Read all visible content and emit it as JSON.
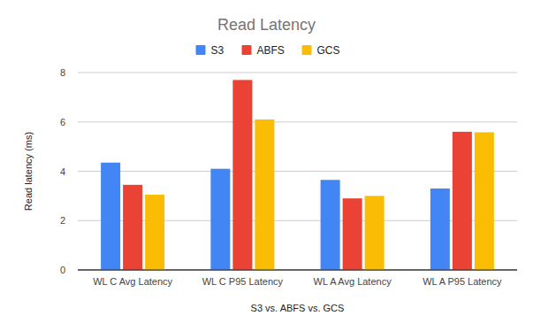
{
  "chart_data": {
    "type": "bar",
    "title": "Read Latency",
    "x_label": "S3 vs. ABFS vs. GCS",
    "y_label": "Read latency (ms)",
    "categories": [
      "WL C Avg Latency",
      "WL C P95 Latency",
      "WL A Avg Latency",
      "WL A P95 Latency"
    ],
    "series": [
      {
        "name": "S3",
        "color": "#4285f4",
        "values": [
          4.35,
          4.1,
          3.65,
          3.3
        ]
      },
      {
        "name": "ABFS",
        "color": "#ea4335",
        "values": [
          3.45,
          7.7,
          2.9,
          5.6
        ]
      },
      {
        "name": "GCS",
        "color": "#fbbc04",
        "values": [
          3.05,
          6.1,
          3.0,
          5.58
        ]
      }
    ],
    "ylim": [
      0,
      8
    ],
    "yticks": [
      0,
      2,
      4,
      6,
      8
    ],
    "grid": true,
    "legend": "top"
  }
}
